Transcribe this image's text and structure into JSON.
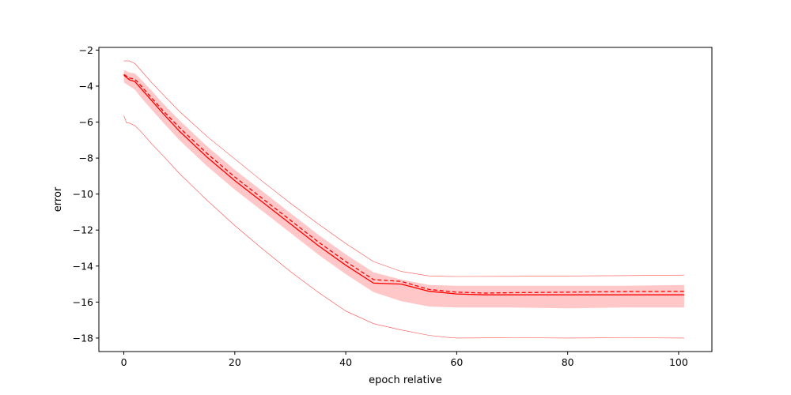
{
  "chart_data": {
    "type": "line",
    "title": "",
    "xlabel": "epoch relative",
    "ylabel": "error",
    "xlim": [
      -4.5,
      106.0
    ],
    "ylim": [
      -18.75,
      -1.85
    ],
    "xticks": [
      0,
      20,
      40,
      60,
      80,
      100
    ],
    "yticks": [
      -18,
      -16,
      -14,
      -12,
      -10,
      -8,
      -6,
      -4,
      -2
    ],
    "grid": false,
    "legend": "none",
    "colors": {
      "line": "#ff0000",
      "band": "#ff9999",
      "thin": "#ff4d4d"
    },
    "series": [
      {
        "role": "mean",
        "style": "solid",
        "x": [
          0,
          1,
          2,
          3,
          5,
          7,
          10,
          15,
          20,
          25,
          30,
          35,
          40,
          45,
          50,
          55,
          60,
          65,
          70,
          80,
          90,
          101
        ],
        "y": [
          -3.4,
          -3.65,
          -3.75,
          -4.1,
          -4.8,
          -5.5,
          -6.5,
          -7.95,
          -9.25,
          -10.45,
          -11.65,
          -12.85,
          -13.95,
          -14.95,
          -15.0,
          -15.4,
          -15.55,
          -15.6,
          -15.6,
          -15.6,
          -15.6,
          -15.6
        ]
      },
      {
        "role": "median",
        "style": "dashed",
        "x": [
          0,
          1,
          2,
          3,
          5,
          7,
          10,
          15,
          20,
          25,
          30,
          35,
          40,
          45,
          50,
          55,
          60,
          65,
          70,
          80,
          90,
          101
        ],
        "y": [
          -3.35,
          -3.55,
          -3.62,
          -3.95,
          -4.65,
          -5.35,
          -6.3,
          -7.75,
          -9.05,
          -10.25,
          -11.45,
          -12.65,
          -13.75,
          -14.75,
          -14.85,
          -15.3,
          -15.45,
          -15.5,
          -15.48,
          -15.45,
          -15.42,
          -15.4
        ]
      },
      {
        "role": "max",
        "style": "thin",
        "x": [
          0,
          1,
          2,
          3,
          5,
          7,
          10,
          15,
          20,
          25,
          30,
          35,
          40,
          45,
          50,
          55,
          58,
          60,
          70,
          80,
          90,
          101
        ],
        "y": [
          -2.6,
          -2.6,
          -2.75,
          -3.1,
          -3.8,
          -4.45,
          -5.4,
          -6.8,
          -8.05,
          -9.3,
          -10.5,
          -11.65,
          -12.75,
          -13.75,
          -14.3,
          -14.55,
          -14.57,
          -14.58,
          -14.57,
          -14.55,
          -14.53,
          -14.5
        ]
      },
      {
        "role": "min",
        "style": "thin",
        "x": [
          0,
          0.5,
          1,
          2,
          3,
          5,
          7,
          10,
          15,
          20,
          25,
          30,
          35,
          40,
          45,
          50,
          55,
          58,
          60,
          70,
          80,
          90,
          101
        ],
        "y": [
          -5.65,
          -6.05,
          -6.05,
          -6.2,
          -6.5,
          -7.2,
          -7.85,
          -8.85,
          -10.35,
          -11.75,
          -13.05,
          -14.3,
          -15.45,
          -16.5,
          -17.2,
          -17.55,
          -17.85,
          -17.95,
          -18.0,
          -17.98,
          -18.0,
          -17.98,
          -18.0
        ]
      }
    ],
    "band": {
      "role": "spread",
      "x": [
        0,
        1,
        2,
        3,
        5,
        7,
        10,
        15,
        20,
        25,
        30,
        35,
        40,
        45,
        50,
        55,
        60,
        65,
        70,
        80,
        90,
        101
      ],
      "upper": [
        -3.1,
        -3.25,
        -3.3,
        -3.6,
        -4.25,
        -4.95,
        -5.9,
        -7.35,
        -8.65,
        -9.85,
        -11.05,
        -12.25,
        -13.35,
        -14.35,
        -14.75,
        -15.05,
        -15.1,
        -15.1,
        -15.1,
        -15.1,
        -15.1,
        -15.05
      ],
      "lower": [
        -3.8,
        -4.0,
        -4.2,
        -4.6,
        -5.3,
        -6.0,
        -7.0,
        -8.45,
        -9.75,
        -10.95,
        -12.15,
        -13.35,
        -14.45,
        -15.45,
        -15.95,
        -16.25,
        -16.3,
        -16.3,
        -16.3,
        -16.35,
        -16.3,
        -16.3
      ]
    }
  }
}
